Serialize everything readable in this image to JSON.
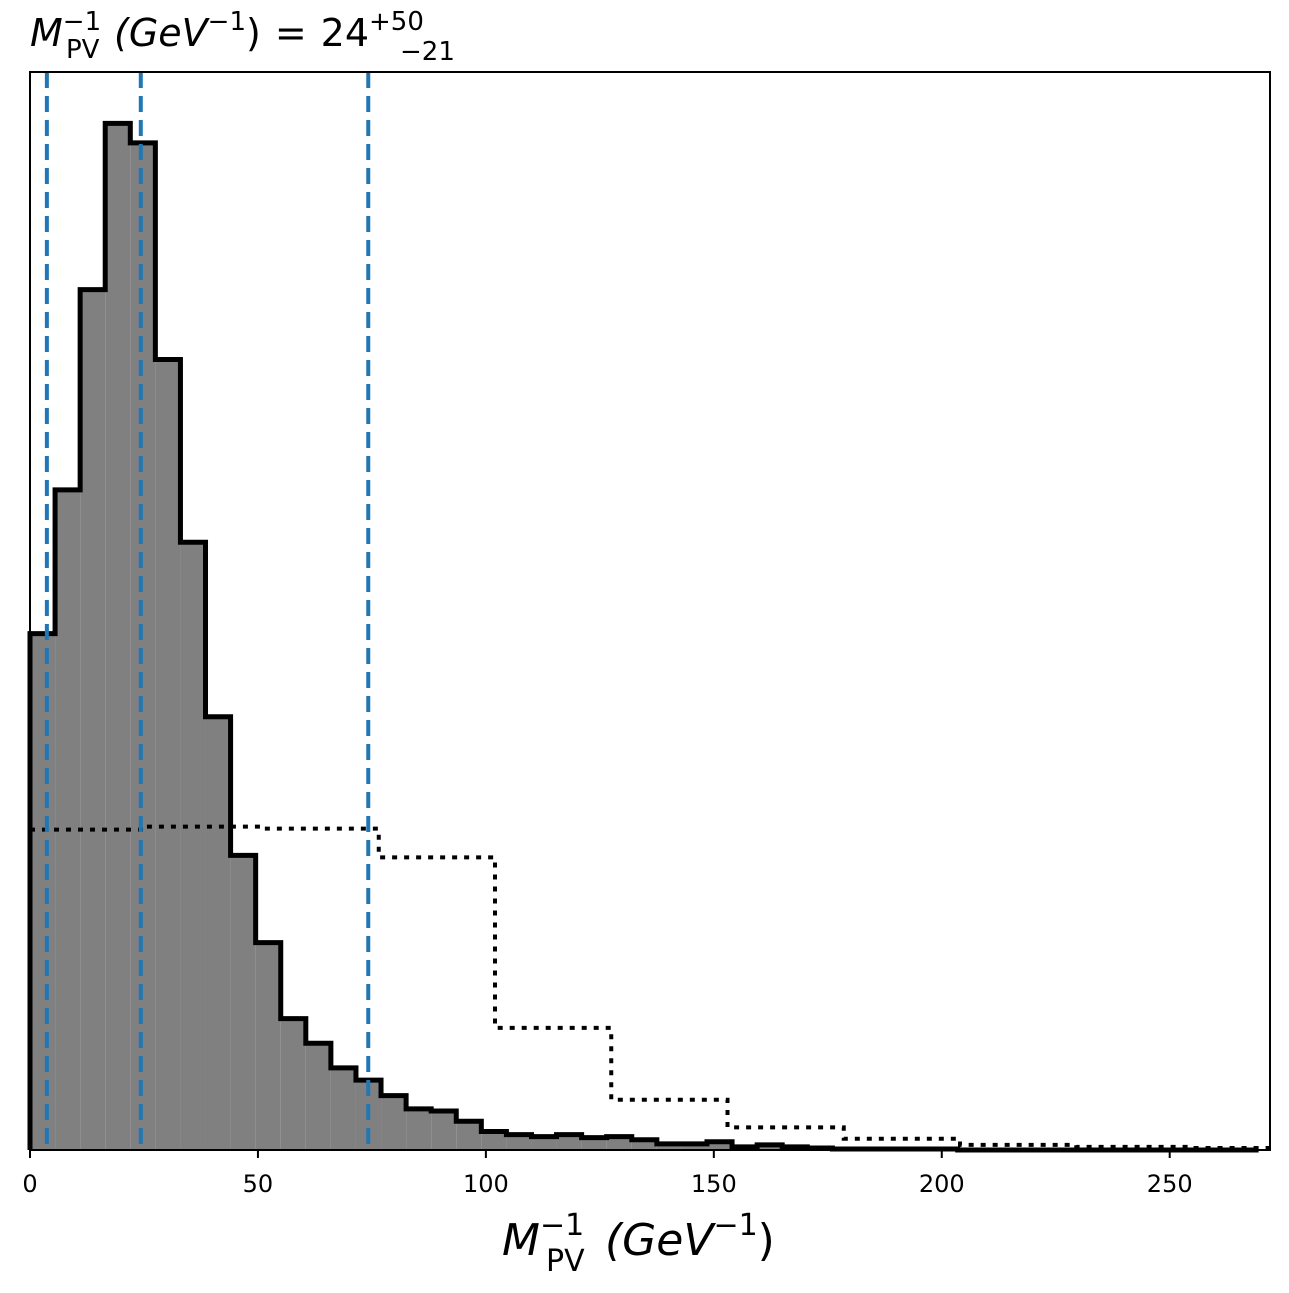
{
  "chart_data": {
    "type": "histogram",
    "title": {
      "prefix": "M",
      "superscript": "−1",
      "subscript": "PV",
      "units_open": "(GeV",
      "units_superscript": "−1",
      "units_close": ")",
      "equals": "=",
      "value": "24",
      "upper_error": "+50",
      "lower_error": "−21"
    },
    "xlabel": {
      "main": "M",
      "superscript": "−1",
      "subscript": "PV",
      "units_open": "(GeV",
      "units_superscript": "−1",
      "units_close": ")"
    },
    "ylabel": "",
    "xlim": [
      0,
      272
    ],
    "ylim": [
      0,
      1.05
    ],
    "x_ticks": [
      0,
      50,
      100,
      150,
      200,
      250
    ],
    "x_tick_labels": [
      "0",
      "50",
      "100",
      "150",
      "200",
      "250"
    ],
    "y_ticks_visible": false,
    "grid": false,
    "legend": "none",
    "colors": {
      "filled_hist": "#808080",
      "outline": "#000000",
      "vlines": "#1f77b4"
    },
    "series": [
      {
        "style": "filled-step",
        "bin_edges": [
          0,
          5.5,
          11,
          16.5,
          22,
          27.5,
          33,
          38.5,
          44,
          49.5,
          55,
          60.5,
          66,
          71.5,
          77,
          82.5,
          88,
          93.5,
          99,
          104.5,
          110,
          115.5,
          121,
          126.5,
          132,
          137.5,
          143,
          148.5,
          154,
          159.5,
          165,
          170.5,
          176,
          181.5,
          187,
          192.5,
          198,
          203.5,
          209,
          214.5,
          220,
          225.5,
          231,
          236.5,
          242,
          247.5,
          253,
          258.5,
          264,
          269.5
        ],
        "values": [
          0.503,
          0.643,
          0.838,
          1.0,
          0.981,
          0.77,
          0.592,
          0.422,
          0.287,
          0.202,
          0.128,
          0.104,
          0.08,
          0.068,
          0.053,
          0.04,
          0.038,
          0.028,
          0.018,
          0.015,
          0.013,
          0.015,
          0.012,
          0.013,
          0.01,
          0.006,
          0.006,
          0.008,
          0.003,
          0.005,
          0.003,
          0.002,
          0.001,
          0.001,
          0.001,
          0.001,
          0.001,
          0.0,
          0.0,
          0.0,
          0.0,
          0.0,
          0.0,
          0.0,
          0.0,
          0.0,
          0.0,
          0.0,
          0.0
        ]
      },
      {
        "style": "dotted-step",
        "bin_edges": [
          0,
          25.5,
          51,
          76.5,
          102,
          127.5,
          153,
          178.5,
          204,
          229.5,
          255,
          272
        ],
        "values": [
          0.312,
          0.315,
          0.313,
          0.285,
          0.119,
          0.049,
          0.022,
          0.011,
          0.005,
          0.003,
          0.002
        ]
      }
    ],
    "vlines": [
      3.7,
      24.3,
      74.2
    ]
  }
}
